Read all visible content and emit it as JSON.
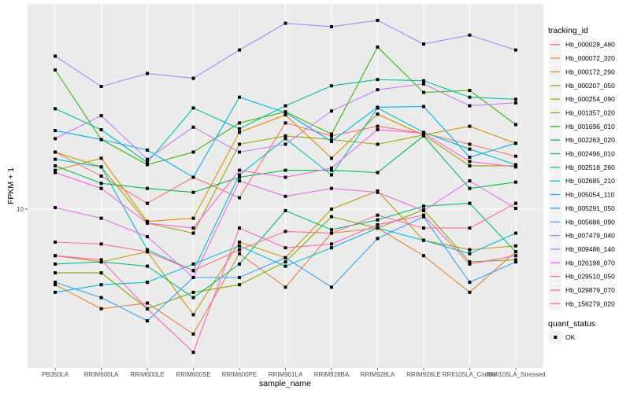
{
  "chart_data": {
    "type": "line",
    "title": "",
    "xlabel": "sample_name",
    "ylabel": "FPKM + 1",
    "y_scale": "log10",
    "ylim": [
      3.42,
      40
    ],
    "y_ticks": [
      10
    ],
    "y_tick_labels": [
      "10"
    ],
    "grid": true,
    "legend_position": "right",
    "categories": [
      "PB350LA",
      "RRIM600LA",
      "RRIM600LE",
      "RRIM600SE",
      "RRIM600PE",
      "RRIM901LA",
      "RRIM928BA",
      "RRIM928LA",
      "RRIM928LE",
      "RRII105LA_Control",
      "RRII105LA_Stressed"
    ],
    "legend_title": "tracking_id",
    "series": [
      {
        "name": "Hb_000028_480",
        "color": "#F8766D",
        "values": [
          14.7,
          12.5,
          10.4,
          12.4,
          10.8,
          17.9,
          16.4,
          17.5,
          16.7,
          15.5,
          14.3
        ]
      },
      {
        "name": "Hb_000072_320",
        "color": "#EA8331",
        "values": [
          6.0,
          5.1,
          5.3,
          4.3,
          7.4,
          5.9,
          8.5,
          8.8,
          7.3,
          5.7,
          7.5
        ]
      },
      {
        "name": "Hb_000172_290",
        "color": "#D89000",
        "values": [
          13.0,
          14.1,
          9.2,
          9.4,
          16.8,
          18.9,
          14.1,
          19.0,
          16.5,
          17.5,
          15.6
        ]
      },
      {
        "name": "Hb_000207_050",
        "color": "#C09B00",
        "values": [
          7.3,
          7.0,
          7.5,
          4.9,
          8.0,
          7.2,
          10.0,
          11.3,
          8.1,
          7.6,
          7.8
        ]
      },
      {
        "name": "Hb_000254_090",
        "color": "#A3A500",
        "values": [
          14.7,
          13.3,
          9.1,
          8.5,
          15.5,
          16.4,
          16.0,
          15.5,
          16.5,
          13.4,
          13.4
        ]
      },
      {
        "name": "Hb_001357_020",
        "color": "#7CAE00",
        "values": [
          6.5,
          6.5,
          5.1,
          5.7,
          6.0,
          7.0,
          9.5,
          8.8,
          9.95,
          7.0,
          7.1
        ]
      },
      {
        "name": "Hb_001696_010",
        "color": "#39B600",
        "values": [
          25.6,
          16.0,
          13.5,
          14.7,
          17.9,
          19.3,
          16.6,
          29.9,
          22.0,
          22.3,
          17.7
        ]
      },
      {
        "name": "Hb_002263_020",
        "color": "#00BB4E",
        "values": [
          13.4,
          11.9,
          11.5,
          11.2,
          12.4,
          13.0,
          13.0,
          12.8,
          16.4,
          11.5,
          12.0
        ]
      },
      {
        "name": "Hb_002496_010",
        "color": "#00BF7D",
        "values": [
          6.9,
          7.0,
          6.8,
          5.5,
          6.9,
          9.9,
          8.7,
          9.3,
          10.2,
          10.4,
          7.5
        ]
      },
      {
        "name": "Hb_002518_260",
        "color": "#00C1A3",
        "values": [
          19.7,
          17.1,
          13.7,
          19.8,
          17.2,
          20.1,
          23.0,
          24.0,
          23.8,
          21.3,
          21.0
        ]
      },
      {
        "name": "Hb_002685_210",
        "color": "#00BFC4",
        "values": [
          14.0,
          13.3,
          7.6,
          6.6,
          12.6,
          16.1,
          12.6,
          19.8,
          16.8,
          15.0,
          13.5
        ]
      },
      {
        "name": "Hb_005054_110",
        "color": "#00BAE0",
        "values": [
          5.7,
          6.0,
          6.1,
          6.9,
          7.8,
          6.8,
          7.7,
          8.8,
          8.1,
          7.4,
          8.5
        ]
      },
      {
        "name": "Hb_005291_050",
        "color": "#00B0F6",
        "values": [
          17.0,
          16.0,
          14.9,
          12.4,
          21.3,
          19.2,
          15.8,
          19.9,
          20.0,
          14.2,
          15.6
        ]
      },
      {
        "name": "Hb_005686_090",
        "color": "#35A2FF",
        "values": [
          6.1,
          5.5,
          4.7,
          6.3,
          6.3,
          7.2,
          5.9,
          8.2,
          9.5,
          6.1,
          7.0
        ]
      },
      {
        "name": "Hb_007479_040",
        "color": "#9590FF",
        "values": [
          28.1,
          22.9,
          25.0,
          24.2,
          29.3,
          35.1,
          34.3,
          35.8,
          30.5,
          32.4,
          29.3
        ]
      },
      {
        "name": "Hb_009486_140",
        "color": "#C77CFF",
        "values": [
          16.1,
          18.8,
          14.0,
          17.4,
          14.7,
          15.5,
          19.4,
          22.4,
          23.3,
          20.1,
          20.5
        ]
      },
      {
        "name": "Hb_026198_070",
        "color": "#E76BF3",
        "values": [
          10.1,
          9.4,
          8.3,
          6.3,
          12.1,
          10.9,
          11.5,
          11.2,
          9.9,
          12.1,
          10.05
        ]
      },
      {
        "name": "Hb_029510_050",
        "color": "#FA62DB",
        "values": [
          12.8,
          11.5,
          9.1,
          8.8,
          13.0,
          12.4,
          13.2,
          17.1,
          16.7,
          13.8,
          13.3
        ]
      },
      {
        "name": "Hb_029879_070",
        "color": "#FF62BC",
        "values": [
          7.3,
          7.1,
          5.1,
          3.8,
          8.8,
          7.7,
          7.9,
          9.0,
          9.6,
          6.9,
          7.3
        ]
      },
      {
        "name": "Hb_156279_020",
        "color": "#FF6C91",
        "values": [
          8.0,
          7.9,
          7.5,
          6.6,
          7.6,
          8.6,
          8.5,
          9.6,
          8.8,
          8.8,
          10.4
        ]
      }
    ],
    "shape_legend": {
      "title": "quant_status",
      "items": [
        "OK"
      ]
    }
  }
}
